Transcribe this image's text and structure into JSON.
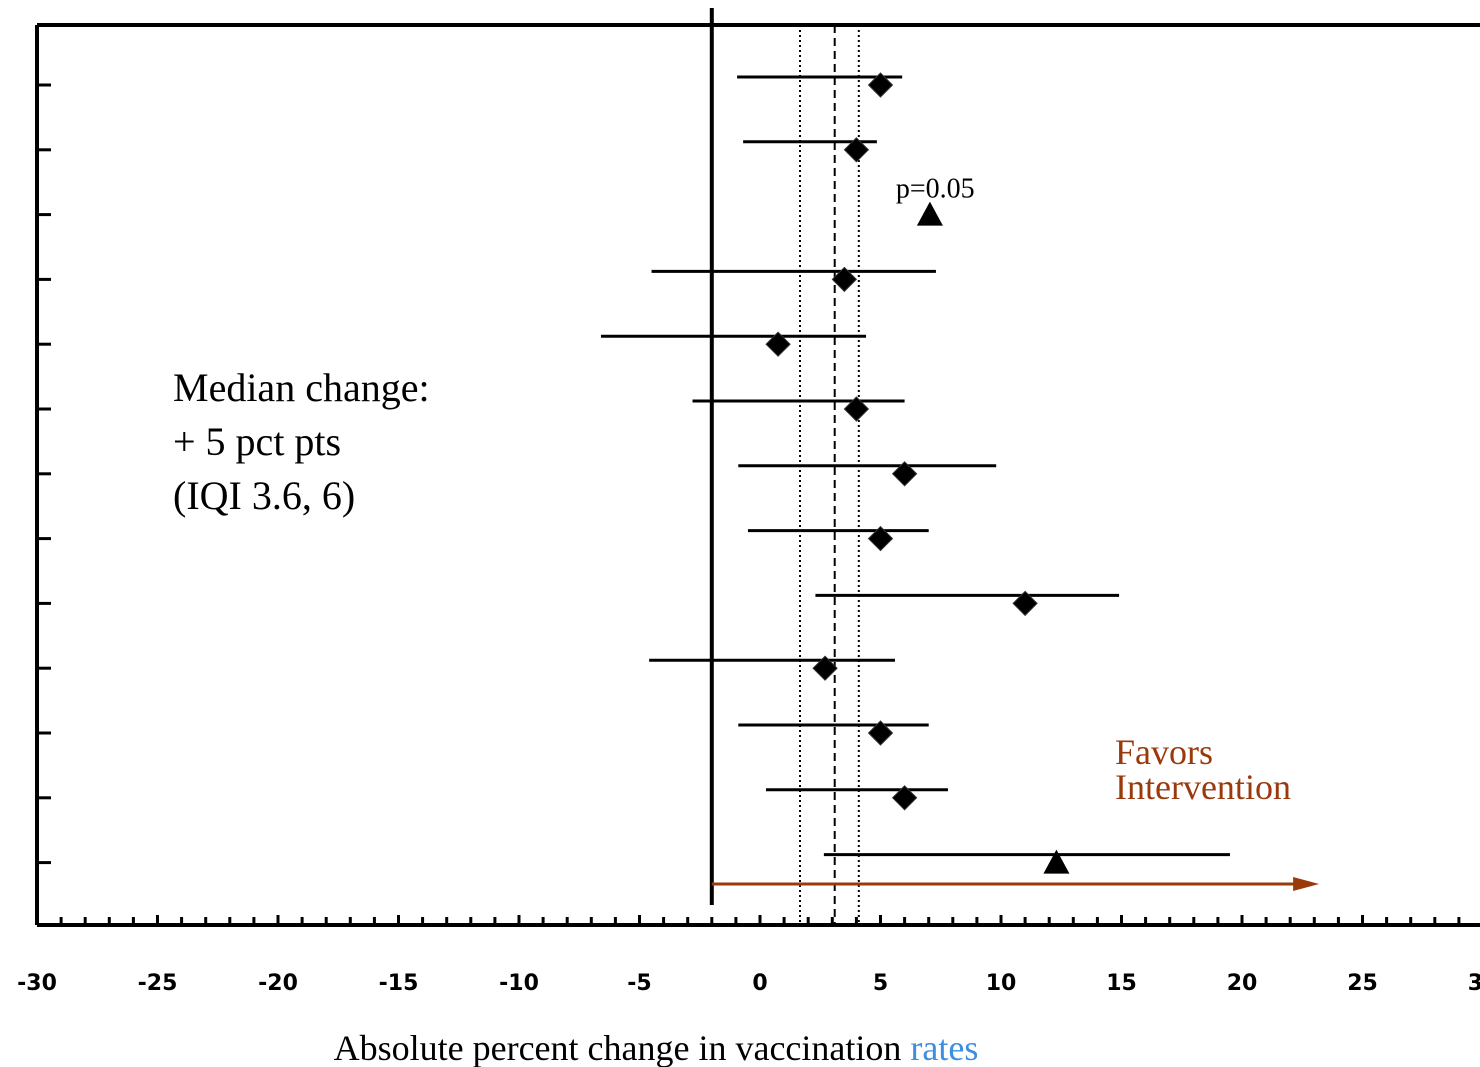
{
  "chart_data": {
    "type": "forest",
    "categories": [
      null,
      null,
      null,
      null,
      null,
      null,
      null,
      null,
      null,
      null,
      null,
      null,
      null
    ],
    "values": [
      5.0,
      4.0,
      7.05,
      3.5,
      0.75,
      4.0,
      6.0,
      5.0,
      11.0,
      2.7,
      5.0,
      6.0,
      12.3
    ],
    "ci_low": [
      -0.95,
      -0.7,
      null,
      -4.5,
      -6.6,
      -2.8,
      -0.9,
      -0.5,
      2.3,
      -4.6,
      -0.9,
      0.25,
      2.65
    ],
    "ci_high": [
      5.9,
      4.85,
      null,
      7.3,
      4.4,
      6.0,
      9.8,
      7.0,
      14.9,
      5.6,
      7.0,
      7.8,
      19.5
    ],
    "markers": [
      "diamond",
      "diamond",
      "triangle",
      "diamond",
      "diamond",
      "diamond",
      "diamond",
      "diamond",
      "diamond",
      "diamond",
      "diamond",
      "diamond",
      "triangle"
    ],
    "color": "#000000",
    "xlim": [
      -30,
      30
    ],
    "xticks": [
      -30,
      -25,
      -20,
      -15,
      -10,
      -5,
      0,
      5,
      10,
      15,
      20,
      25,
      30
    ],
    "xminor_step": 1,
    "reference_lines": [
      {
        "value": -2.0,
        "style": "solid"
      },
      {
        "value": 1.66,
        "style": "dotted"
      },
      {
        "value": 3.1,
        "style": "dashed"
      },
      {
        "value": 4.1,
        "style": "dotted"
      }
    ],
    "arrow": {
      "from": -2.0,
      "to": 23.2,
      "color": "#9a3a0c"
    },
    "favors_text": [
      "Favors",
      "Intervention"
    ],
    "point_annotation": {
      "row": 2,
      "text": "p=0.05"
    },
    "median_text": [
      "Median change:",
      "+ 5 pct pts",
      "(IQI 3.6, 6)"
    ],
    "xlabel": [
      {
        "text": "Absolute percent change in vaccination ",
        "color": "#000000"
      },
      {
        "text": "rates",
        "color": "#3c8ee0"
      }
    ]
  }
}
